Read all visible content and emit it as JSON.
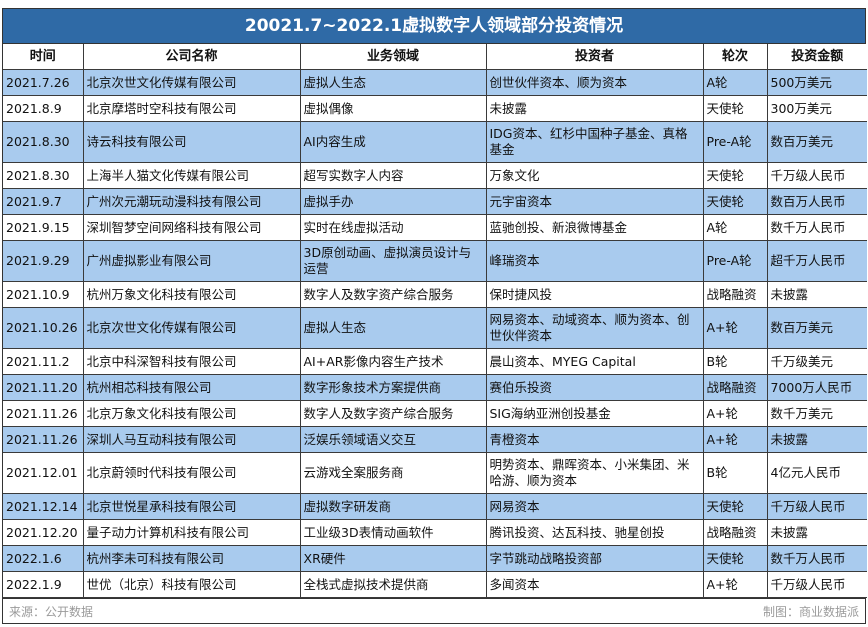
{
  "title": "20021.7~2022.1虚拟数字人领域部分投资情况",
  "headers": [
    "时间",
    "公司名称",
    "业务领域",
    "投资者",
    "轮次",
    "投资金额"
  ],
  "colors": {
    "title_bg": "#2f6aa6",
    "row_blue": "#a9cbee",
    "row_white": "#ffffff"
  },
  "rows": [
    {
      "date": "2021.7.26",
      "company": "北京次世文化传媒有限公司",
      "field": "虚拟人生态",
      "investors": "创世伙伴资本、顺为资本",
      "round": "A轮",
      "amount": "500万美元"
    },
    {
      "date": "2021.8.9",
      "company": "北京摩塔时空科技有限公司",
      "field": "虚拟偶像",
      "investors": "未披露",
      "round": "天使轮",
      "amount": "300万美元"
    },
    {
      "date": "2021.8.30",
      "company": "诗云科技有限公司",
      "field": "AI内容生成",
      "investors": "IDG资本、红杉中国种子基金、真格基金",
      "round": "Pre-A轮",
      "amount": "数百万美元"
    },
    {
      "date": "2021.8.30",
      "company": "上海半人猫文化传媒有限公司",
      "field": "超写实数字人内容",
      "investors": "万象文化",
      "round": "天使轮",
      "amount": "千万级人民币"
    },
    {
      "date": "2021.9.7",
      "company": "广州次元潮玩动漫科技有限公司",
      "field": "虚拟手办",
      "investors": "元宇宙资本",
      "round": "天使轮",
      "amount": "数百万人民币"
    },
    {
      "date": "2021.9.15",
      "company": "深圳智梦空间网络科技有限公司",
      "field": "实时在线虚拟活动",
      "investors": "蓝驰创投、新浪微博基金",
      "round": "A轮",
      "amount": "数千万人民币"
    },
    {
      "date": "2021.9.29",
      "company": "广州虚拟影业有限公司",
      "field": "3D原创动画、虚拟演员设计与运营",
      "investors": "峰瑞资本",
      "round": "Pre-A轮",
      "amount": "超千万人民币"
    },
    {
      "date": "2021.10.9",
      "company": "杭州万象文化科技有限公司",
      "field": "数字人及数字资产综合服务",
      "investors": "保时捷风投",
      "round": "战略融资",
      "amount": "未披露"
    },
    {
      "date": "2021.10.26",
      "company": "北京次世文化传媒有限公司",
      "field": "虚拟人生态",
      "investors": "网易资本、动域资本、顺为资本、创世伙伴资本",
      "round": "A+轮",
      "amount": "数百万美元"
    },
    {
      "date": "2021.11.2",
      "company": "北京中科深智科技有限公司",
      "field": "AI+AR影像内容生产技术",
      "investors": "晨山资本、MYEG Capital",
      "round": "B轮",
      "amount": "千万级美元"
    },
    {
      "date": "2021.11.20",
      "company": "杭州相芯科技有限公司",
      "field": "数字形象技术方案提供商",
      "investors": "赛伯乐投资",
      "round": "战略融资",
      "amount": "7000万人民币"
    },
    {
      "date": "2021.11.26",
      "company": "北京万象文化科技有限公司",
      "field": "数字人及数字资产综合服务",
      "investors": "SIG海纳亚洲创投基金",
      "round": "A+轮",
      "amount": "数千万美元"
    },
    {
      "date": "2021.11.26",
      "company": "深圳人马互动科技有限公司",
      "field": "泛娱乐领域语义交互",
      "investors": "青橙资本",
      "round": "A+轮",
      "amount": "未披露"
    },
    {
      "date": "2021.12.01",
      "company": "北京蔚领时代科技有限公司",
      "field": "云游戏全案服务商",
      "investors": "明势资本、鼎晖资本、小米集团、米哈游、顺为资本",
      "round": "B轮",
      "amount": "4亿元人民币"
    },
    {
      "date": "2021.12.14",
      "company": "北京世悦星承科技有限公司",
      "field": "虚拟数字研发商",
      "investors": "网易资本",
      "round": "天使轮",
      "amount": "千万级人民币"
    },
    {
      "date": "2021.12.20",
      "company": "量子动力计算机科技有限公司",
      "field": "工业级3D表情动画软件",
      "investors": "腾讯投资、达瓦科技、驰星创投",
      "round": "战略融资",
      "amount": "未披露"
    },
    {
      "date": "2022.1.6",
      "company": "杭州李未可科技有限公司",
      "field": "XR硬件",
      "investors": "字节跳动战略投资部",
      "round": "天使轮",
      "amount": "数千万人民币"
    },
    {
      "date": "2022.1.9",
      "company": "世优（北京）科技有限公司",
      "field": "全栈式虚拟技术提供商",
      "investors": "多闻资本",
      "round": "A+轮",
      "amount": "千万级人民币"
    }
  ],
  "footer": {
    "source": "来源：公开数据",
    "credit": "制图：商业数据派"
  }
}
